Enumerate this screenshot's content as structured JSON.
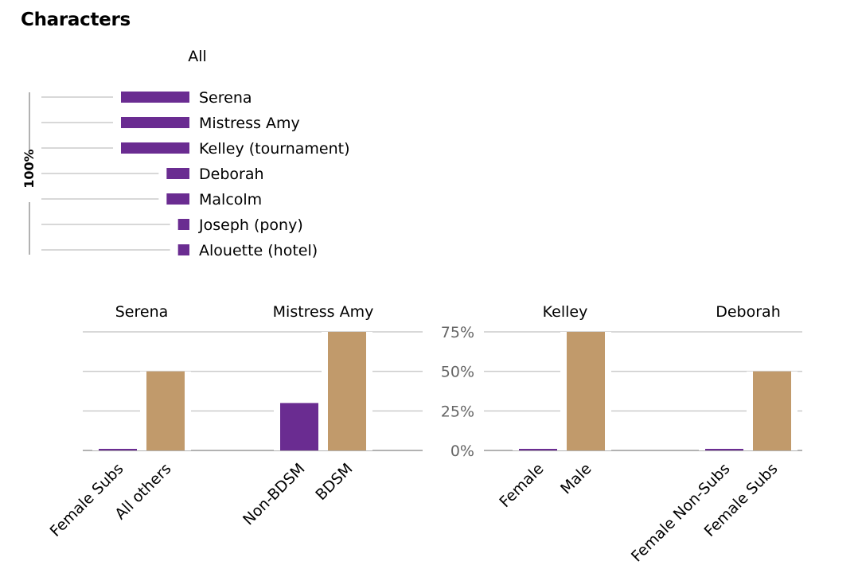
{
  "page": {
    "title": "Characters"
  },
  "colors": {
    "purple": "#6a2c91",
    "tan": "#c19a6b",
    "grid": "#cccccc",
    "axis": "#999999",
    "tick_label": "#666666"
  },
  "chart_data": [
    {
      "type": "bar",
      "orientation": "horizontal",
      "title": "All",
      "ylabel": "100%",
      "categories": [
        "Serena",
        "Mistress Amy",
        "Kelley (tournament)",
        "Deborah",
        "Malcolm",
        "Joseph (pony)",
        "Alouette (hotel)"
      ],
      "values": [
        6,
        6,
        6,
        2,
        2,
        1,
        1
      ],
      "grid": true
    },
    {
      "type": "bar",
      "title": "Serena",
      "categories": [
        "Female Subs",
        "All others"
      ],
      "values": [
        1,
        50
      ],
      "colors": [
        "#6a2c91",
        "#c19a6b"
      ],
      "ylim": [
        0,
        75
      ],
      "grid": true
    },
    {
      "type": "bar",
      "title": "Mistress Amy",
      "categories": [
        "Non-BDSM",
        "BDSM"
      ],
      "values": [
        30,
        75
      ],
      "colors": [
        "#6a2c91",
        "#c19a6b"
      ],
      "ylim": [
        0,
        75
      ],
      "grid": true
    },
    {
      "type": "bar",
      "title": "Kelley",
      "categories": [
        "Female",
        "Male"
      ],
      "values": [
        1,
        75
      ],
      "colors": [
        "#6a2c91",
        "#c19a6b"
      ],
      "ylim": [
        0,
        75
      ],
      "yticks": [
        "0%",
        "25%",
        "50%",
        "75%"
      ],
      "grid": true
    },
    {
      "type": "bar",
      "title": "Deborah",
      "categories": [
        "Female Non-Subs",
        "Female Subs"
      ],
      "values": [
        1,
        50
      ],
      "colors": [
        "#6a2c91",
        "#c19a6b"
      ],
      "ylim": [
        0,
        75
      ],
      "grid": true
    }
  ]
}
